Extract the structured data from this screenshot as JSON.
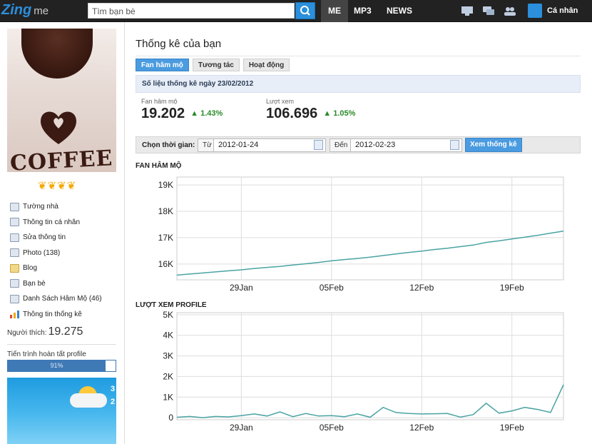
{
  "topbar": {
    "logo": "Zing",
    "logo_suffix": "me",
    "search_placeholder": "Tìm bạn bè",
    "nav": [
      "ME",
      "MP3",
      "NEWS"
    ],
    "account_label": "Cá nhân"
  },
  "sidebar": {
    "menu": [
      {
        "label": "Tường nhà",
        "icon": "wall-icon"
      },
      {
        "label": "Thông tin cá nhân",
        "icon": "profile-icon"
      },
      {
        "label": "Sửa thông tin",
        "icon": "edit-icon"
      },
      {
        "label": "Photo (138)",
        "icon": "photo-icon"
      },
      {
        "label": "Blog",
        "icon": "blog-icon"
      },
      {
        "label": "Bạn bè",
        "icon": "friends-icon"
      },
      {
        "label": "Danh Sách Hâm Mộ (46)",
        "icon": "fans-icon"
      },
      {
        "label": "Thông tin thống kê",
        "icon": "stats-icon"
      }
    ],
    "likes_label": "Người thích:",
    "likes_value": "19.275",
    "progress_label": "Tiến trình hoàn tất profile",
    "progress_text": "91%",
    "progress_value": 0.91,
    "photo_word": "COFFEE",
    "weather_temp_1": "3",
    "weather_temp_2": "2"
  },
  "main": {
    "title": "Thống kê của bạn",
    "tabs": [
      "Fan hâm mộ",
      "Tương tác",
      "Hoạt động"
    ],
    "active_tab": 0,
    "info": "Số liệu thống kê ngày 23/02/2012",
    "fans": {
      "label": "Fan hâm mộ",
      "value": "19.202",
      "change": "1.43%"
    },
    "views": {
      "label": "Lượt xem",
      "value": "106.696",
      "change": "1.05%"
    },
    "filter": {
      "label": "Chọn thời gian:",
      "from_label": "Từ",
      "from_value": "2012-01-24",
      "to_label": "Đến",
      "to_value": "2012-02-23",
      "submit": "Xem thống kê"
    },
    "accent_color": "#4a9be0",
    "line_color": "#4aa3a3"
  },
  "chart_data": [
    {
      "type": "line",
      "title": "FAN HÂM MỘ",
      "x_tick_labels": [
        "29Jan",
        "05Feb",
        "12Feb",
        "19Feb"
      ],
      "x_tick_days": [
        5,
        12,
        19,
        26
      ],
      "y_tick_labels": [
        "16K",
        "17K",
        "18K",
        "19K"
      ],
      "y_ticks": [
        16000,
        17000,
        18000,
        19000
      ],
      "ylim": [
        15400,
        19300
      ],
      "xlim": [
        0,
        30
      ],
      "grid": true,
      "x": [
        0,
        1,
        2,
        3,
        4,
        5,
        6,
        7,
        8,
        9,
        10,
        11,
        12,
        13,
        14,
        15,
        16,
        17,
        18,
        19,
        20,
        21,
        22,
        23,
        24,
        25,
        26,
        27,
        28,
        29,
        30
      ],
      "values": [
        15580,
        15620,
        15660,
        15700,
        15740,
        15780,
        15830,
        15870,
        15910,
        15960,
        16010,
        16060,
        16120,
        16170,
        16210,
        16260,
        16320,
        16380,
        16440,
        16490,
        16550,
        16600,
        16660,
        16720,
        16820,
        16880,
        16950,
        17020,
        17090,
        17170,
        17250
      ]
    },
    {
      "type": "line",
      "title": "LƯỢT XEM PROFILE",
      "x_tick_labels": [
        "29Jan",
        "05Feb",
        "12Feb",
        "19Feb"
      ],
      "x_tick_days": [
        5,
        12,
        19,
        26
      ],
      "y_tick_labels": [
        "0",
        "1K",
        "2K",
        "3K",
        "4K",
        "5K"
      ],
      "y_ticks": [
        0,
        1000,
        2000,
        3000,
        4000,
        5000
      ],
      "ylim": [
        -100,
        5100
      ],
      "xlim": [
        0,
        30
      ],
      "grid": true,
      "x": [
        0,
        1,
        2,
        3,
        4,
        5,
        6,
        7,
        8,
        9,
        10,
        11,
        12,
        13,
        14,
        15,
        16,
        17,
        18,
        19,
        20,
        21,
        22,
        23,
        24,
        25,
        26,
        27,
        28,
        29,
        30
      ],
      "values": [
        20,
        60,
        0,
        60,
        40,
        100,
        180,
        80,
        280,
        50,
        200,
        80,
        100,
        50,
        180,
        20,
        500,
        250,
        200,
        180,
        190,
        200,
        30,
        150,
        700,
        220,
        330,
        500,
        400,
        250,
        1600
      ]
    }
  ]
}
